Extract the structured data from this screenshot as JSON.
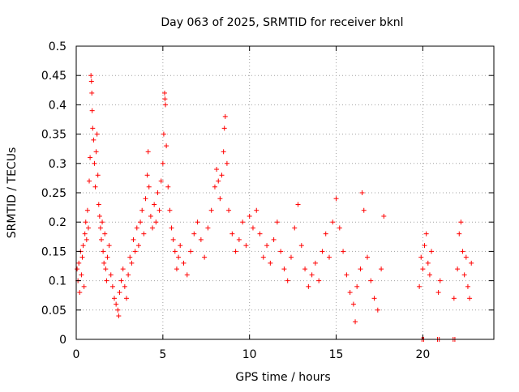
{
  "chart_data": {
    "type": "scatter",
    "title": "Day 063 of 2025, SRMTID for receiver bknl",
    "xlabel": "GPS time / hours",
    "ylabel": "SRMTID / TECUs",
    "xlim": [
      0,
      24.1
    ],
    "ylim": [
      0,
      0.5
    ],
    "x_ticks": [
      0,
      5,
      10,
      15,
      20
    ],
    "x_tick_labels": [
      "0",
      "5",
      "10",
      "15",
      "20"
    ],
    "y_ticks": [
      0,
      0.05,
      0.1,
      0.15,
      0.2,
      0.25,
      0.3,
      0.35,
      0.4,
      0.45,
      0.5
    ],
    "y_tick_labels": [
      "0",
      "0.05",
      "0.1",
      "0.15",
      "0.2",
      "0.25",
      "0.3",
      "0.35",
      "0.4",
      "0.45",
      "0.5"
    ],
    "grid": true,
    "marker": "plus",
    "color": "#ff0000",
    "series": [
      {
        "name": "SRMTID",
        "points": [
          [
            0.05,
            0.12
          ],
          [
            0.1,
            0.1
          ],
          [
            0.15,
            0.13
          ],
          [
            0.2,
            0.08
          ],
          [
            0.25,
            0.15
          ],
          [
            0.3,
            0.11
          ],
          [
            0.35,
            0.14
          ],
          [
            0.4,
            0.16
          ],
          [
            0.45,
            0.09
          ],
          [
            0.5,
            0.18
          ],
          [
            0.55,
            0.2
          ],
          [
            0.6,
            0.17
          ],
          [
            0.65,
            0.22
          ],
          [
            0.7,
            0.19
          ],
          [
            0.75,
            0.27
          ],
          [
            0.8,
            0.31
          ],
          [
            0.85,
            0.45
          ],
          [
            0.88,
            0.44
          ],
          [
            0.9,
            0.42
          ],
          [
            0.92,
            0.39
          ],
          [
            0.95,
            0.36
          ],
          [
            1.0,
            0.34
          ],
          [
            1.05,
            0.3
          ],
          [
            1.1,
            0.26
          ],
          [
            1.15,
            0.32
          ],
          [
            1.2,
            0.35
          ],
          [
            1.25,
            0.28
          ],
          [
            1.3,
            0.23
          ],
          [
            1.35,
            0.21
          ],
          [
            1.4,
            0.19
          ],
          [
            1.45,
            0.17
          ],
          [
            1.5,
            0.2
          ],
          [
            1.55,
            0.15
          ],
          [
            1.6,
            0.13
          ],
          [
            1.65,
            0.18
          ],
          [
            1.7,
            0.12
          ],
          [
            1.75,
            0.1
          ],
          [
            1.8,
            0.14
          ],
          [
            1.9,
            0.16
          ],
          [
            2.0,
            0.11
          ],
          [
            2.1,
            0.09
          ],
          [
            2.2,
            0.07
          ],
          [
            2.3,
            0.06
          ],
          [
            2.4,
            0.05
          ],
          [
            2.45,
            0.04
          ],
          [
            2.5,
            0.08
          ],
          [
            2.6,
            0.1
          ],
          [
            2.7,
            0.12
          ],
          [
            2.8,
            0.09
          ],
          [
            2.9,
            0.07
          ],
          [
            3.0,
            0.11
          ],
          [
            3.1,
            0.14
          ],
          [
            3.2,
            0.13
          ],
          [
            3.3,
            0.17
          ],
          [
            3.4,
            0.15
          ],
          [
            3.5,
            0.19
          ],
          [
            3.6,
            0.16
          ],
          [
            3.7,
            0.2
          ],
          [
            3.8,
            0.22
          ],
          [
            3.9,
            0.18
          ],
          [
            4.0,
            0.24
          ],
          [
            4.1,
            0.28
          ],
          [
            4.15,
            0.32
          ],
          [
            4.2,
            0.26
          ],
          [
            4.3,
            0.21
          ],
          [
            4.4,
            0.19
          ],
          [
            4.5,
            0.23
          ],
          [
            4.6,
            0.2
          ],
          [
            4.7,
            0.25
          ],
          [
            4.8,
            0.22
          ],
          [
            4.9,
            0.27
          ],
          [
            5.0,
            0.3
          ],
          [
            5.05,
            0.35
          ],
          [
            5.1,
            0.42
          ],
          [
            5.12,
            0.41
          ],
          [
            5.15,
            0.4
          ],
          [
            5.2,
            0.33
          ],
          [
            5.3,
            0.26
          ],
          [
            5.4,
            0.22
          ],
          [
            5.5,
            0.19
          ],
          [
            5.6,
            0.17
          ],
          [
            5.7,
            0.15
          ],
          [
            5.8,
            0.12
          ],
          [
            5.9,
            0.14
          ],
          [
            6.0,
            0.16
          ],
          [
            6.2,
            0.13
          ],
          [
            6.4,
            0.11
          ],
          [
            6.6,
            0.15
          ],
          [
            6.8,
            0.18
          ],
          [
            7.0,
            0.2
          ],
          [
            7.2,
            0.17
          ],
          [
            7.4,
            0.14
          ],
          [
            7.6,
            0.19
          ],
          [
            7.8,
            0.22
          ],
          [
            8.0,
            0.26
          ],
          [
            8.1,
            0.29
          ],
          [
            8.2,
            0.27
          ],
          [
            8.3,
            0.24
          ],
          [
            8.4,
            0.28
          ],
          [
            8.5,
            0.32
          ],
          [
            8.55,
            0.36
          ],
          [
            8.6,
            0.38
          ],
          [
            8.7,
            0.3
          ],
          [
            8.8,
            0.22
          ],
          [
            9.0,
            0.18
          ],
          [
            9.2,
            0.15
          ],
          [
            9.4,
            0.17
          ],
          [
            9.6,
            0.2
          ],
          [
            9.8,
            0.16
          ],
          [
            10.0,
            0.21
          ],
          [
            10.2,
            0.19
          ],
          [
            10.4,
            0.22
          ],
          [
            10.6,
            0.18
          ],
          [
            10.8,
            0.14
          ],
          [
            11.0,
            0.16
          ],
          [
            11.2,
            0.13
          ],
          [
            11.4,
            0.17
          ],
          [
            11.6,
            0.2
          ],
          [
            11.8,
            0.15
          ],
          [
            12.0,
            0.12
          ],
          [
            12.2,
            0.1
          ],
          [
            12.4,
            0.14
          ],
          [
            12.6,
            0.19
          ],
          [
            12.8,
            0.23
          ],
          [
            13.0,
            0.16
          ],
          [
            13.2,
            0.12
          ],
          [
            13.4,
            0.09
          ],
          [
            13.6,
            0.11
          ],
          [
            13.8,
            0.13
          ],
          [
            14.0,
            0.1
          ],
          [
            14.2,
            0.15
          ],
          [
            14.4,
            0.18
          ],
          [
            14.6,
            0.14
          ],
          [
            14.8,
            0.2
          ],
          [
            15.0,
            0.24
          ],
          [
            15.2,
            0.19
          ],
          [
            15.4,
            0.15
          ],
          [
            15.6,
            0.11
          ],
          [
            15.8,
            0.08
          ],
          [
            16.0,
            0.06
          ],
          [
            16.1,
            0.03
          ],
          [
            16.2,
            0.09
          ],
          [
            16.4,
            0.12
          ],
          [
            16.5,
            0.25
          ],
          [
            16.6,
            0.22
          ],
          [
            16.8,
            0.14
          ],
          [
            17.0,
            0.1
          ],
          [
            17.2,
            0.07
          ],
          [
            17.4,
            0.05
          ],
          [
            17.6,
            0.12
          ],
          [
            17.75,
            0.21
          ],
          [
            19.8,
            0.09
          ],
          [
            19.9,
            0.14
          ],
          [
            20.0,
            0.12
          ],
          [
            20.1,
            0.16
          ],
          [
            20.2,
            0.18
          ],
          [
            20.3,
            0.13
          ],
          [
            20.4,
            0.11
          ],
          [
            20.5,
            0.15
          ],
          [
            20.9,
            0.08
          ],
          [
            21.0,
            0.1
          ],
          [
            21.8,
            0.07
          ],
          [
            22.0,
            0.12
          ],
          [
            22.1,
            0.18
          ],
          [
            22.2,
            0.2
          ],
          [
            22.3,
            0.15
          ],
          [
            22.4,
            0.11
          ],
          [
            22.5,
            0.14
          ],
          [
            22.6,
            0.09
          ],
          [
            22.7,
            0.07
          ],
          [
            22.8,
            0.13
          ],
          [
            19.95,
            0.0
          ],
          [
            20.05,
            0.0
          ],
          [
            20.85,
            0.0
          ],
          [
            20.95,
            0.0
          ],
          [
            21.75,
            0.0
          ],
          [
            21.85,
            0.0
          ]
        ]
      }
    ]
  }
}
